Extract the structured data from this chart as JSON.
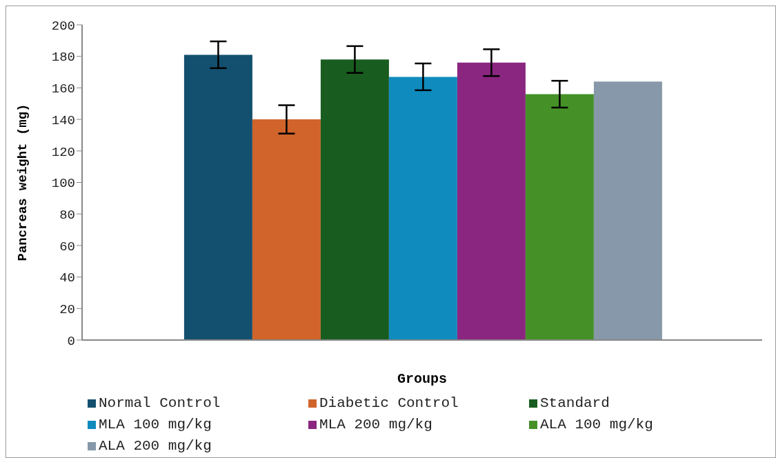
{
  "chart_data": {
    "type": "bar",
    "xlabel": "Groups",
    "ylabel": "Pancreas weight (mg)",
    "categories": [
      null
    ],
    "series": [
      {
        "name": "Normal Control",
        "color": "#13506f",
        "values": [
          181
        ],
        "errors": [
          8.5
        ]
      },
      {
        "name": "Diabetic Control",
        "color": "#d0642b",
        "values": [
          140
        ],
        "errors": [
          9
        ]
      },
      {
        "name": "Standard",
        "color": "#195c1f",
        "values": [
          178
        ],
        "errors": [
          8.5
        ]
      },
      {
        "name": "MLA 100 mg/kg",
        "color": "#108bbe",
        "values": [
          167
        ],
        "errors": [
          8.5
        ]
      },
      {
        "name": "MLA 200 mg/kg",
        "color": "#8b2680",
        "values": [
          176
        ],
        "errors": [
          8.5
        ]
      },
      {
        "name": "ALA 100 mg/kg",
        "color": "#459128",
        "values": [
          156
        ],
        "errors": [
          8.5
        ]
      },
      {
        "name": "ALA 200 mg/kg",
        "color": "#8698a9",
        "values": [
          164
        ]
      }
    ],
    "ylim": [
      0,
      200
    ],
    "yticks": [
      0,
      20,
      40,
      60,
      80,
      100,
      120,
      140,
      160,
      180,
      200
    ],
    "grid": false,
    "legend": "bottom"
  }
}
